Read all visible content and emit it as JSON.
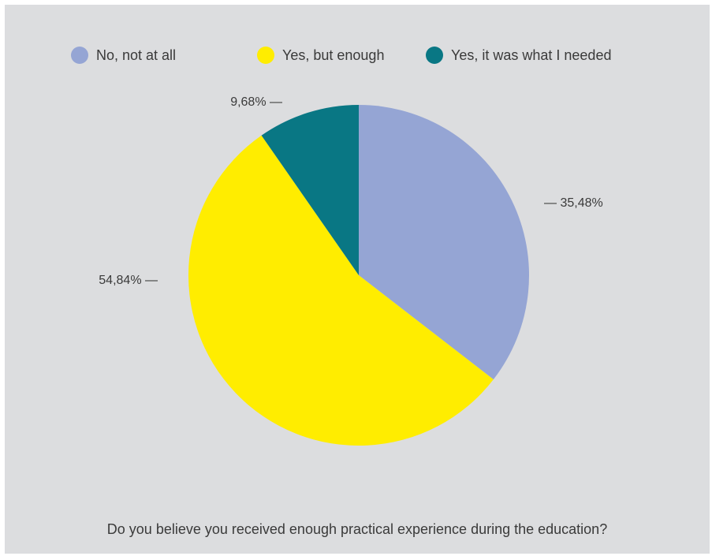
{
  "chart_data": {
    "type": "pie",
    "categories": [
      "No, not at all",
      "Yes, but enough",
      "Yes, it was what I needed"
    ],
    "values": [
      35.48,
      54.84,
      9.68
    ],
    "labels": [
      "35,48%",
      "54,84%",
      "9,68%"
    ],
    "colors": [
      "#95a5d4",
      "#ffed00",
      "#097784"
    ],
    "legend_position": "top",
    "title": "Do you believe you received enough practical experience during the education?"
  },
  "legend": [
    {
      "label": "No, not at all",
      "color": "#95a5d4"
    },
    {
      "label": "Yes, but enough",
      "color": "#ffed00"
    },
    {
      "label": "Yes, it was what I needed",
      "color": "#097784"
    }
  ],
  "caption": "Do you believe you received enough practical experience during the education?"
}
